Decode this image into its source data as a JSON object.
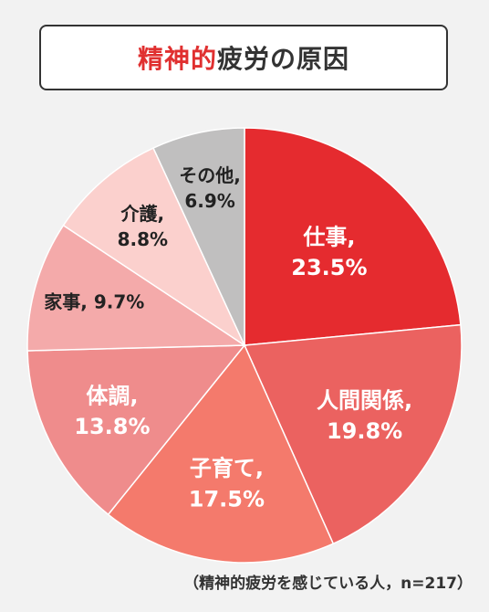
{
  "title": {
    "highlight": "精神的",
    "rest": "疲労の原因"
  },
  "footnote": "（精神的疲労を感じている人，n=217）",
  "chart_data": {
    "type": "pie",
    "title": "精神的疲労の原因",
    "start_angle_deg": 0,
    "direction": "clockwise",
    "slices": [
      {
        "label": "仕事",
        "value": 23.5,
        "text": "23.5%",
        "color": "#e52b2f",
        "label_color": "#ffffff"
      },
      {
        "label": "人間関係",
        "value": 19.8,
        "text": "19.8%",
        "color": "#eb6260",
        "label_color": "#ffffff"
      },
      {
        "label": "子育て",
        "value": 17.5,
        "text": "17.5%",
        "color": "#f47a6c",
        "label_color": "#ffffff"
      },
      {
        "label": "体調",
        "value": 13.8,
        "text": "13.8%",
        "color": "#ef8c8c",
        "label_color": "#ffffff"
      },
      {
        "label": "家事",
        "value": 9.7,
        "text": "9.7%",
        "color": "#f4aaaa",
        "label_color": "#222222"
      },
      {
        "label": "介護",
        "value": 8.8,
        "text": "8.8%",
        "color": "#fbd0cd",
        "label_color": "#222222"
      },
      {
        "label": "その他",
        "value": 6.9,
        "text": "6.9%",
        "color": "#c0bfbf",
        "label_color": "#222222"
      }
    ]
  }
}
